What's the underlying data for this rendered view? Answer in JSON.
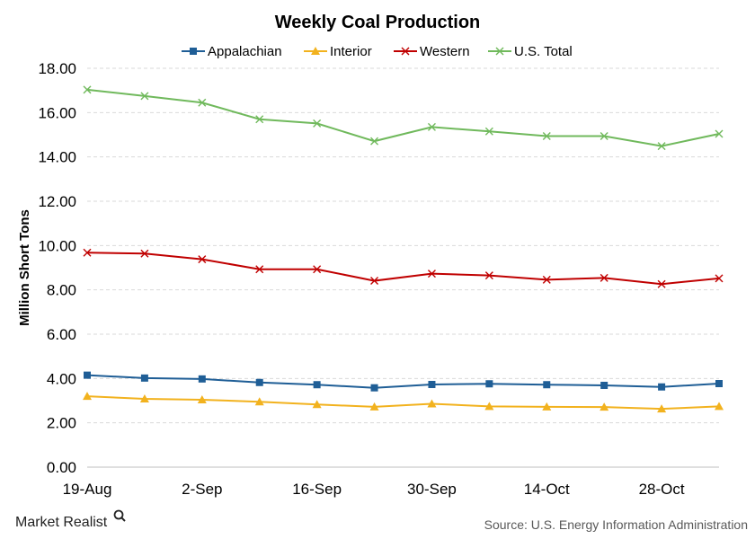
{
  "chart_data": {
    "type": "line",
    "title": "Weekly Coal Production",
    "ylabel": "Million Short Tons",
    "xlabel": "",
    "x": [
      "19-Aug",
      "26-Aug",
      "2-Sep",
      "9-Sep",
      "16-Sep",
      "23-Sep",
      "30-Sep",
      "7-Oct",
      "14-Oct",
      "21-Oct",
      "28-Oct",
      "4-Nov"
    ],
    "x_tick_labels": [
      "19-Aug",
      "",
      "2-Sep",
      "",
      "16-Sep",
      "",
      "30-Sep",
      "",
      "14-Oct",
      "",
      "28-Oct",
      ""
    ],
    "ylim": [
      0,
      18
    ],
    "y_ticks": [
      "0.00",
      "2.00",
      "4.00",
      "6.00",
      "8.00",
      "10.00",
      "12.00",
      "14.00",
      "16.00",
      "18.00"
    ],
    "grid": true,
    "legend_position": "top",
    "series": [
      {
        "name": "Appalachian",
        "color": "#1f5e96",
        "marker": "square",
        "values": [
          4.15,
          4.02,
          3.98,
          3.82,
          3.72,
          3.58,
          3.73,
          3.76,
          3.72,
          3.69,
          3.62,
          3.77
        ]
      },
      {
        "name": "Interior",
        "color": "#f2b21e",
        "marker": "triangle",
        "values": [
          3.2,
          3.08,
          3.04,
          2.95,
          2.83,
          2.72,
          2.86,
          2.74,
          2.72,
          2.71,
          2.63,
          2.74
        ]
      },
      {
        "name": "Western",
        "color": "#c00000",
        "marker": "x",
        "values": [
          9.68,
          9.64,
          9.38,
          8.93,
          8.93,
          8.41,
          8.73,
          8.65,
          8.46,
          8.54,
          8.26,
          8.52
        ]
      },
      {
        "name": "U.S. Total",
        "color": "#70b95c",
        "marker": "x",
        "values": [
          17.03,
          16.75,
          16.45,
          15.7,
          15.51,
          14.71,
          15.35,
          15.15,
          14.94,
          14.94,
          14.49,
          15.04
        ]
      }
    ]
  },
  "footer": {
    "brand": "Market Realist",
    "source": "Source: U.S. Energy Information Administration"
  }
}
